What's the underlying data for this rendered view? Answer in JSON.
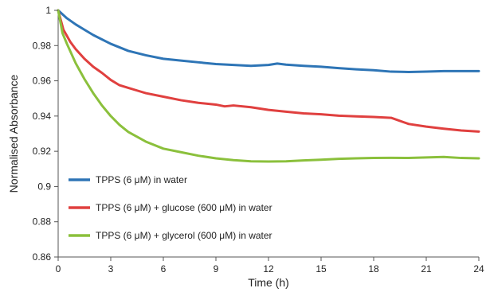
{
  "chart_data": {
    "type": "line",
    "title": "",
    "xlabel": "Time (h)",
    "ylabel": "Normalised Absorbance",
    "xlim": [
      0,
      24
    ],
    "ylim": [
      0.86,
      1
    ],
    "xticks": [
      0,
      3,
      6,
      9,
      12,
      15,
      18,
      21,
      24
    ],
    "yticks": [
      0.86,
      0.88,
      0.9,
      0.92,
      0.94,
      0.96,
      0.98,
      1
    ],
    "ytick_labels": [
      "0.86",
      "0.88",
      "0.9",
      "0.92",
      "0.94",
      "0.96",
      "0.98",
      "1"
    ],
    "grid": false,
    "legend_position": "bottom-left",
    "series": [
      {
        "name": "TPPS (6 μM) in water",
        "color": "#2e75b6",
        "x": [
          0,
          0.5,
          1,
          1.5,
          2,
          3,
          4,
          5,
          6,
          7,
          8,
          9,
          10,
          11,
          12,
          12.5,
          13,
          14,
          15,
          16,
          17,
          18,
          19,
          20,
          21,
          22,
          23,
          24
        ],
        "y": [
          1.0,
          0.9955,
          0.992,
          0.989,
          0.986,
          0.981,
          0.977,
          0.9745,
          0.9725,
          0.9715,
          0.9705,
          0.9695,
          0.969,
          0.9685,
          0.969,
          0.9698,
          0.9692,
          0.9685,
          0.968,
          0.9672,
          0.9665,
          0.966,
          0.9652,
          0.965,
          0.9652,
          0.9655,
          0.9655,
          0.9655
        ]
      },
      {
        "name": "TPPS (6 μM) + glucose (600 μM) in water",
        "color": "#e0403f",
        "x": [
          0,
          0.3,
          0.7,
          1,
          1.5,
          2,
          2.5,
          3,
          3.5,
          4,
          4.5,
          5,
          6,
          7,
          8,
          9,
          9.5,
          10,
          11,
          12,
          13,
          14,
          15,
          16,
          17,
          18,
          19,
          20,
          21,
          22,
          23,
          24
        ],
        "y": [
          1.0,
          0.989,
          0.982,
          0.978,
          0.9725,
          0.968,
          0.9645,
          0.9605,
          0.9575,
          0.956,
          0.9545,
          0.953,
          0.951,
          0.949,
          0.9475,
          0.9465,
          0.9455,
          0.946,
          0.945,
          0.9435,
          0.9425,
          0.9415,
          0.941,
          0.9402,
          0.9398,
          0.9395,
          0.939,
          0.9355,
          0.934,
          0.9328,
          0.9318,
          0.9312
        ]
      },
      {
        "name": "TPPS (6 μM) + glycerol (600 μM) in water",
        "color": "#8bc03c",
        "x": [
          0,
          0.25,
          0.5,
          1,
          1.5,
          2,
          2.5,
          3,
          3.5,
          4,
          5,
          6,
          7,
          8,
          9,
          10,
          11,
          12,
          13,
          14,
          15,
          16,
          17,
          18,
          19,
          20,
          21,
          22,
          23,
          24
        ],
        "y": [
          1.0,
          0.987,
          0.981,
          0.97,
          0.961,
          0.953,
          0.946,
          0.94,
          0.935,
          0.931,
          0.9255,
          0.9215,
          0.9195,
          0.9175,
          0.916,
          0.915,
          0.9143,
          0.9142,
          0.9143,
          0.9148,
          0.9152,
          0.9157,
          0.916,
          0.9162,
          0.9163,
          0.9162,
          0.9165,
          0.9168,
          0.9162,
          0.916
        ]
      }
    ]
  }
}
